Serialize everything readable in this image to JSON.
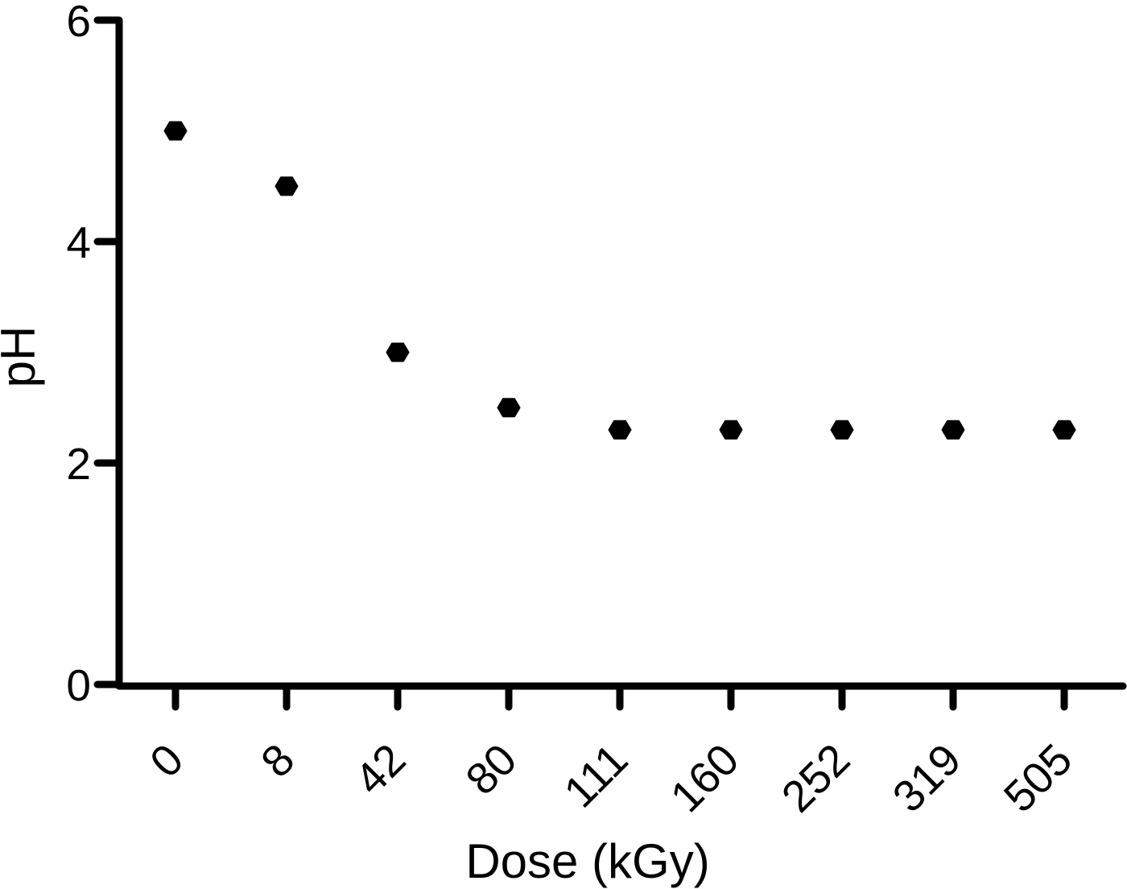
{
  "chart_data": {
    "type": "scatter",
    "title": "",
    "xlabel": "Dose (kGy)",
    "ylabel": "pH",
    "categories": [
      "0",
      "8",
      "42",
      "80",
      "111",
      "160",
      "252",
      "319",
      "505"
    ],
    "values": [
      5.0,
      4.5,
      3.0,
      2.5,
      2.3,
      2.3,
      2.3,
      2.3,
      2.3
    ],
    "x_tick_labels": [
      "0",
      "8",
      "42",
      "80",
      "111",
      "160",
      "252",
      "319",
      "505"
    ],
    "y_ticks": [
      0,
      2,
      4,
      6
    ],
    "y_tick_labels": [
      "0",
      "2",
      "4",
      "6"
    ],
    "ylim": [
      0,
      6
    ],
    "x_axis_type": "categorical-evenly-spaced",
    "x_tick_label_rotation_deg": 45,
    "grid": false,
    "legend": "none",
    "marker": "hexagon",
    "marker_color": "#000000",
    "axis_color": "#000000",
    "text_color": "#000000",
    "background_color": "#ffffff"
  }
}
